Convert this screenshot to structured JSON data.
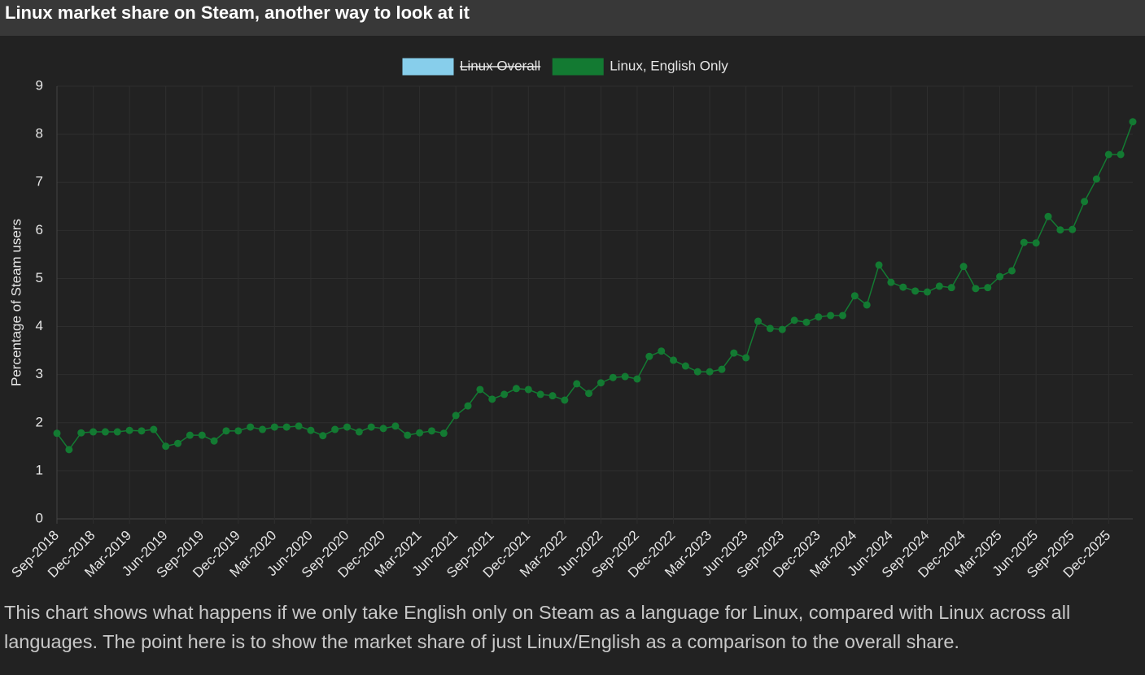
{
  "chart_data": {
    "type": "line",
    "title": "Linux market share on Steam, another way to look at it",
    "y_label": "Percentage of Steam users",
    "categories": [
      "Sep-2018",
      null,
      null,
      "Dec-2018",
      null,
      null,
      "Mar-2019",
      null,
      null,
      "Jun-2019",
      null,
      null,
      "Sep-2019",
      null,
      null,
      "Dec-2019",
      null,
      null,
      "Mar-2020",
      null,
      null,
      "Jun-2020",
      null,
      null,
      "Sep-2020",
      null,
      null,
      "Dec-2020",
      null,
      null,
      "Mar-2021",
      null,
      null,
      "Jun-2021",
      null,
      null,
      "Sep-2021",
      null,
      null,
      "Dec-2021",
      null,
      null,
      "Mar-2022",
      null,
      null,
      "Jun-2022",
      null,
      null,
      "Sep-2022",
      null,
      null,
      "Dec-2022",
      null,
      null,
      "Mar-2023",
      null,
      null,
      "Jun-2023",
      null,
      null,
      "Sep-2023",
      null,
      null,
      "Dec-2023",
      null,
      null,
      "Mar-2024",
      null,
      null,
      "Jun-2024",
      null,
      null,
      "Sep-2024",
      null,
      null,
      "Dec-2024",
      null,
      null,
      "Mar-2025",
      null,
      null,
      "Jun-2025",
      null,
      null,
      "Sep-2025",
      null,
      null,
      "Dec-2025",
      null,
      null
    ],
    "series": [
      {
        "name": "Linux Overall",
        "color": "#87ceeb",
        "hidden": true
      },
      {
        "name": "Linux, English Only",
        "color": "#137a32",
        "hidden": false,
        "values": [
          1.78,
          1.44,
          1.79,
          1.81,
          1.81,
          1.81,
          1.84,
          1.83,
          1.86,
          1.51,
          1.57,
          1.74,
          1.74,
          1.62,
          1.83,
          1.83,
          1.91,
          1.86,
          1.91,
          1.91,
          1.93,
          1.84,
          1.73,
          1.86,
          1.91,
          1.81,
          1.91,
          1.88,
          1.93,
          1.74,
          1.79,
          1.83,
          1.78,
          2.15,
          2.35,
          2.69,
          2.49,
          2.59,
          2.71,
          2.69,
          2.59,
          2.56,
          2.47,
          2.81,
          2.61,
          2.83,
          2.94,
          2.96,
          2.91,
          3.38,
          3.49,
          3.3,
          3.18,
          3.06,
          3.06,
          3.11,
          3.45,
          3.35,
          4.11,
          3.96,
          3.94,
          4.13,
          4.09,
          4.2,
          4.23,
          4.23,
          4.64,
          4.45,
          5.28,
          4.92,
          4.82,
          4.74,
          4.72,
          4.84,
          4.81,
          5.25,
          4.79,
          4.81,
          5.04,
          5.16,
          5.75,
          5.74,
          6.29,
          6.01,
          6.02,
          6.6,
          7.07,
          7.58,
          7.58,
          8.26
        ]
      }
    ],
    "ylim": [
      0,
      9
    ],
    "yticks": [
      0,
      1,
      2,
      3,
      4,
      5,
      6,
      7,
      8,
      9
    ],
    "grid": true,
    "legend": "top"
  },
  "description": "This chart shows what happens if we only take English only on Steam as a language for Linux, compared with Linux across all languages. The point here is to show the market share of just Linux/English as a comparison to the overall share."
}
